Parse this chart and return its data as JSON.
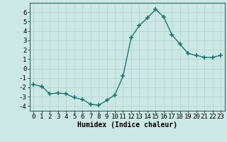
{
  "x": [
    0,
    1,
    2,
    3,
    4,
    5,
    6,
    7,
    8,
    9,
    10,
    11,
    12,
    13,
    14,
    15,
    16,
    17,
    18,
    19,
    20,
    21,
    22,
    23
  ],
  "y": [
    -1.7,
    -1.9,
    -2.7,
    -2.6,
    -2.7,
    -3.1,
    -3.3,
    -3.8,
    -3.9,
    -3.4,
    -2.8,
    -0.8,
    3.3,
    4.6,
    5.4,
    6.3,
    5.5,
    3.6,
    2.6,
    1.6,
    1.4,
    1.2,
    1.2,
    1.4
  ],
  "line_color": "#1a7a6e",
  "marker": "+",
  "marker_size": 4,
  "bg_color": "#cce8e4",
  "grid_color": "#b0d0cc",
  "xlabel": "Humidex (Indice chaleur)",
  "ylim": [
    -4.5,
    7.0
  ],
  "xlim": [
    -0.5,
    23.5
  ],
  "yticks": [
    -4,
    -3,
    -2,
    -1,
    0,
    1,
    2,
    3,
    4,
    5,
    6
  ],
  "xticks": [
    0,
    1,
    2,
    3,
    4,
    5,
    6,
    7,
    8,
    9,
    10,
    11,
    12,
    13,
    14,
    15,
    16,
    17,
    18,
    19,
    20,
    21,
    22,
    23
  ],
  "xlabel_fontsize": 7,
  "tick_fontsize": 6.5,
  "line_width": 1.0,
  "marker_color": "#1a7a6e"
}
